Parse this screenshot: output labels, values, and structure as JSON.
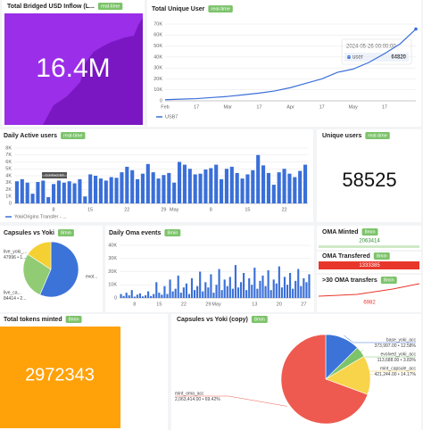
{
  "panels": {
    "inflow": {
      "title": "Total Bridged USD Inflow (L...",
      "badge": "real-time",
      "value": "16.4M"
    },
    "unique_users": {
      "title": "Unique users",
      "badge": "real-time",
      "value": "58525"
    },
    "oma_minted": {
      "title": "OMA Minted",
      "badge": "8min",
      "value": "2063414"
    },
    "oma_transferred": {
      "title": "OMA Transfered",
      "badge": "8min",
      "value": "1333385"
    },
    "oma_30": {
      "title": ">30 OMA transfers",
      "badge": "8min",
      "value": "6982"
    },
    "tokens_minted": {
      "title": "Total tokens minted",
      "badge": "8min",
      "value": "2972343"
    }
  },
  "chart_data": [
    {
      "type": "line",
      "title": "Total Unique User",
      "badge": "real-time",
      "categories": [
        "Feb",
        null,
        "17",
        null,
        "Mar",
        null,
        "17",
        null,
        "Apr",
        null,
        "17",
        null,
        "May",
        null,
        "17",
        null,
        null
      ],
      "series": [
        {
          "name": "USB7",
          "color": "#3a6fd8",
          "values": [
            1000,
            1500,
            2000,
            3000,
            4000,
            5500,
            7000,
            9000,
            12000,
            16000,
            20000,
            26000,
            29000,
            35000,
            43000,
            52000,
            65500
          ]
        }
      ],
      "ylim": [
        0,
        70000
      ],
      "yticks": [
        0,
        {
          "value": 10000,
          "label": "10K"
        },
        {
          "value": 20000,
          "label": "20K"
        },
        {
          "value": 30000,
          "label": "30K"
        },
        {
          "value": 40000,
          "label": "40K"
        },
        {
          "value": 50000,
          "label": "50K"
        },
        {
          "value": 60000,
          "label": "60K"
        },
        {
          "value": 70000,
          "label": "70K"
        }
      ],
      "grid": true,
      "tooltip": {
        "title": "2024-05-26 00:00:00",
        "name": "user",
        "value": 64820
      }
    },
    {
      "type": "bar",
      "title": "Daily Active users",
      "badge": "real-time",
      "categories": [
        null,
        null,
        null,
        null,
        null,
        null,
        null,
        "8",
        null,
        null,
        null,
        null,
        null,
        null,
        "15",
        null,
        null,
        null,
        null,
        null,
        null,
        "22",
        null,
        null,
        null,
        null,
        null,
        null,
        "29",
        null,
        "May",
        null,
        null,
        null,
        null,
        null,
        null,
        "8",
        null,
        null,
        null,
        null,
        null,
        null,
        "15",
        null,
        null,
        null,
        null,
        null,
        null,
        "22",
        null,
        null,
        null,
        null
      ],
      "series": [
        {
          "name": "YokiOrigins Transfer - ...",
          "color": "#3a6fd8",
          "values": [
            3200,
            3500,
            3000,
            1400,
            3100,
            3300,
            900,
            2800,
            3300,
            3000,
            3200,
            2900,
            3500,
            1000,
            4200,
            4000,
            3600,
            3300,
            3800,
            3700,
            4500,
            5300,
            4800,
            3500,
            4300,
            5700,
            4500,
            3600,
            4100,
            4400,
            3000,
            6000,
            5600,
            5000,
            4200,
            4300,
            4900,
            5100,
            5600,
            3500,
            5000,
            5300,
            4400,
            3600,
            4200,
            4800,
            7000,
            5500,
            4400,
            2700,
            4500,
            5000,
            4300,
            3800,
            4700,
            5600
          ]
        }
      ],
      "ylim": [
        0,
        8000
      ],
      "yticks": [
        0,
        {
          "value": 1000,
          "label": "1K"
        },
        {
          "value": 2000,
          "label": "2K"
        },
        {
          "value": 3000,
          "label": "3K"
        },
        {
          "value": 4000,
          "label": "4K"
        },
        {
          "value": 5000,
          "label": "5K"
        },
        {
          "value": 6000,
          "label": "6K"
        },
        {
          "value": 7000,
          "label": "7K"
        },
        {
          "value": 8000,
          "label": "8K"
        }
      ],
      "grid": true,
      "annotation": "Contract list"
    },
    {
      "type": "pie",
      "title": "Capsules vs Yoki",
      "badge": "8min",
      "categories": [
        "evol...",
        "live_ca...",
        "live_yoki_..."
      ],
      "values": [
        172000,
        84414,
        47996
      ],
      "value_labels": [
        null,
        "84414 • 2...",
        "47996 • 1..."
      ],
      "colors": [
        "#3b73d9",
        "#91cc75",
        "#f5d033"
      ]
    },
    {
      "type": "bar",
      "title": "Daily Oma events",
      "badge": "8min",
      "categories": [
        null,
        null,
        null,
        null,
        null,
        "8",
        null,
        null,
        null,
        null,
        null,
        null,
        null,
        null,
        "15",
        null,
        null,
        null,
        null,
        null,
        null,
        null,
        null,
        "22",
        null,
        null,
        null,
        null,
        null,
        null,
        null,
        null,
        "29",
        null,
        null,
        "May",
        null,
        null,
        null,
        null,
        null,
        null,
        null,
        null,
        null,
        null,
        null,
        null,
        null,
        "13",
        null,
        null,
        null,
        null,
        null,
        null,
        null,
        null,
        "20",
        null,
        null,
        null,
        null,
        null,
        null,
        null,
        null,
        "27",
        null,
        null
      ],
      "series": [
        {
          "name": "Oma events",
          "color": "#3a6fd8",
          "values": [
            3000,
            1500,
            4000,
            2000,
            6000,
            1000,
            2500,
            3500,
            1200,
            2000,
            5000,
            1500,
            3000,
            12000,
            4000,
            2500,
            9000,
            3000,
            14000,
            5000,
            7000,
            17000,
            4000,
            8000,
            11000,
            3000,
            15000,
            6000,
            9000,
            20000,
            5000,
            12000,
            8000,
            18000,
            4000,
            10000,
            22000,
            6000,
            14000,
            9000,
            16000,
            7000,
            25000,
            8000,
            12000,
            19000,
            6000,
            15000,
            10000,
            23000,
            7000,
            13000,
            17000,
            9000,
            21000,
            6000,
            14000,
            11000,
            24000,
            8000,
            16000,
            10000,
            19000,
            7000,
            13000,
            22000,
            9000,
            15000,
            12000,
            18000
          ]
        }
      ],
      "ylim": [
        0,
        40000
      ],
      "yticks": [
        0,
        {
          "value": 10000,
          "label": "10K"
        },
        {
          "value": 20000,
          "label": "20K"
        },
        {
          "value": 30000,
          "label": "30K"
        },
        {
          "value": 40000,
          "label": "40K"
        }
      ],
      "grid": true
    },
    {
      "type": "pie",
      "title": "Capsules vs Yoki (copy)",
      "badge": "8min",
      "categories": [
        "base_yoki_acc",
        "evolved_yoki_acc",
        "mint_capsule_acc",
        "mint_oma_acc"
      ],
      "values": [
        373997,
        113688,
        421244,
        2063414
      ],
      "value_labels": [
        "373,997.00 • 12.58%",
        "113,688.00 • 3.83%",
        "421,244.00 • 14.17%",
        "2,063,414.00 • 69.42%"
      ],
      "colors": [
        "#3b73d9",
        "#7cc36a",
        "#f8d44a",
        "#ee5a4f"
      ]
    }
  ]
}
